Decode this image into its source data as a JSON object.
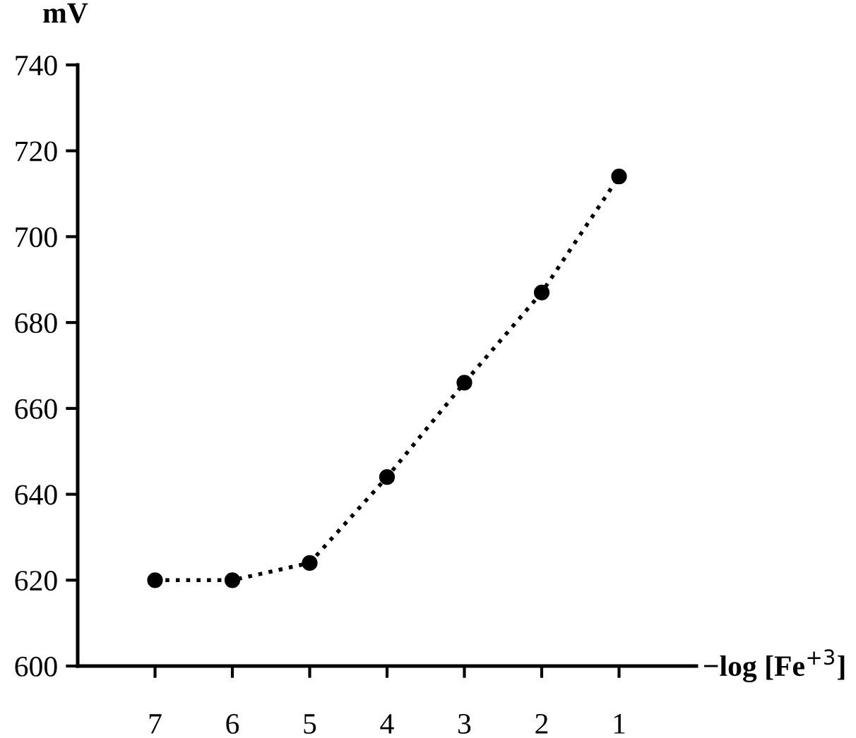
{
  "chart_data": {
    "type": "line",
    "xlabel": "−log [Fe$^{+3}$]",
    "ylabel": "mV",
    "x": [
      7,
      6,
      5,
      4,
      3,
      2,
      1
    ],
    "series": [
      {
        "color": "#000000",
        "values": [
          620,
          620,
          624,
          644,
          666,
          687,
          714
        ]
      }
    ],
    "xlim": [
      8,
      0
    ],
    "xticks": [
      7,
      6,
      5,
      4,
      3,
      2,
      1
    ],
    "ylim": [
      600,
      740
    ],
    "yticks": [
      600,
      620,
      640,
      660,
      680,
      700,
      720,
      740
    ],
    "marker": "circle",
    "line_style": "dotted",
    "grid": false,
    "legend": false
  }
}
